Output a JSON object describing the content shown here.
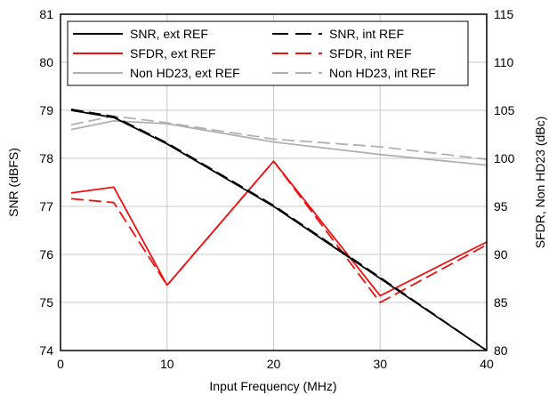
{
  "chart_data": {
    "type": "line",
    "title": "",
    "xlabel": "Input Frequency (MHz)",
    "ylabel_left": "SNR (dBFS)",
    "ylabel_right": "SFDR, Non HD23 (dBc)",
    "xlim": [
      0,
      40
    ],
    "ylim_left": [
      74,
      81
    ],
    "ylim_right": [
      80,
      115
    ],
    "x_ticks": [
      "0",
      "10",
      "20",
      "30",
      "40"
    ],
    "y_ticks_left": [
      "74",
      "75",
      "76",
      "77",
      "78",
      "79",
      "80",
      "81"
    ],
    "y_ticks_right": [
      "80",
      "85",
      "90",
      "95",
      "100",
      "105",
      "110",
      "115"
    ],
    "grid": true,
    "legend_position": "top",
    "series": [
      {
        "name": "SNR, ext REF",
        "axis": "left",
        "color": "#000000",
        "dash": "solid",
        "x": [
          1,
          5,
          10,
          20,
          30,
          40
        ],
        "y": [
          79.0,
          78.85,
          78.3,
          77.0,
          75.5,
          74.0
        ]
      },
      {
        "name": "SNR, int REF",
        "axis": "left",
        "color": "#000000",
        "dash": "dashed",
        "x": [
          1,
          5,
          10,
          20,
          30,
          40
        ],
        "y": [
          79.02,
          78.87,
          78.32,
          77.02,
          75.52,
          74.0
        ]
      },
      {
        "name": "SFDR, ext REF",
        "axis": "right",
        "color": "#ee1111",
        "dash": "solid",
        "x": [
          1,
          5,
          10,
          20,
          30,
          40
        ],
        "y": [
          96.4,
          97.0,
          86.8,
          99.7,
          85.7,
          91.3
        ]
      },
      {
        "name": "SFDR, int REF",
        "axis": "right",
        "color": "#ee1111",
        "dash": "dashed",
        "x": [
          1,
          5,
          10,
          20,
          30,
          40
        ],
        "y": [
          95.8,
          95.4,
          86.8,
          99.7,
          85.0,
          91.0
        ]
      },
      {
        "name": "Non HD23, ext REF",
        "axis": "right",
        "color": "#b0b0b0",
        "dash": "solid",
        "x": [
          1,
          5,
          10,
          20,
          30,
          40
        ],
        "y": [
          103.0,
          103.9,
          103.6,
          101.7,
          100.4,
          99.3
        ]
      },
      {
        "name": "Non HD23, int REF",
        "axis": "right",
        "color": "#b0b0b0",
        "dash": "dashed",
        "x": [
          1,
          5,
          10,
          20,
          30,
          40
        ],
        "y": [
          103.5,
          104.4,
          103.7,
          102.0,
          101.2,
          99.9
        ]
      }
    ]
  }
}
